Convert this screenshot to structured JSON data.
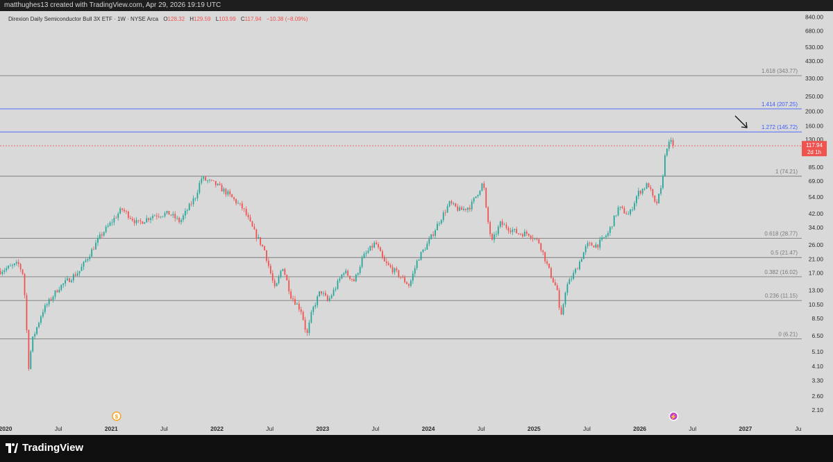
{
  "header": {
    "created_text": "matthughes13 created with TradingView.com, Apr 29, 2026 19:19 UTC"
  },
  "legend": {
    "symbol": "Direxion Daily Semiconductor Bull 3X ETF · 1W · NYSE Arca",
    "o_label": "O",
    "o_value": "128.32",
    "h_label": "H",
    "h_value": "129.59",
    "l_label": "L",
    "l_value": "103.99",
    "c_label": "C",
    "c_value": "117.94",
    "change": "−10.38 (−8.09%)"
  },
  "price_tag": {
    "price": "117.94",
    "countdown": "2d 1h"
  },
  "brand": {
    "name": "TradingView"
  },
  "colors": {
    "up": "#26a69a",
    "down": "#ef5350",
    "fib_gray": "#7a7a7a",
    "fib_blue": "#3d5afe",
    "background": "#d9d9d9"
  },
  "chart_data": {
    "type": "candlestick",
    "y_scale": "log",
    "ylim": [
      1.85,
      920
    ],
    "y_ticks": [
      "840.00",
      "680.00",
      "530.00",
      "430.00",
      "330.00",
      "250.00",
      "200.00",
      "160.00",
      "130.00",
      "85.00",
      "69.00",
      "54.00",
      "42.00",
      "34.00",
      "26.00",
      "21.00",
      "17.00",
      "13.00",
      "10.50",
      "8.50",
      "6.50",
      "5.10",
      "4.10",
      "3.30",
      "2.60",
      "2.10"
    ],
    "x_ticks": [
      {
        "label": "2020",
        "t": 2020.0,
        "bold": true
      },
      {
        "label": "Jul",
        "t": 2020.5,
        "bold": false
      },
      {
        "label": "2021",
        "t": 2021.0,
        "bold": true
      },
      {
        "label": "Jul",
        "t": 2021.5,
        "bold": false
      },
      {
        "label": "2022",
        "t": 2022.0,
        "bold": true
      },
      {
        "label": "Jul",
        "t": 2022.5,
        "bold": false
      },
      {
        "label": "2023",
        "t": 2023.0,
        "bold": true
      },
      {
        "label": "Jul",
        "t": 2023.5,
        "bold": false
      },
      {
        "label": "2024",
        "t": 2024.0,
        "bold": true
      },
      {
        "label": "Jul",
        "t": 2024.5,
        "bold": false
      },
      {
        "label": "2025",
        "t": 2025.0,
        "bold": true
      },
      {
        "label": "Jul",
        "t": 2025.5,
        "bold": false
      },
      {
        "label": "2026",
        "t": 2026.0,
        "bold": true
      },
      {
        "label": "Jul",
        "t": 2026.5,
        "bold": false
      },
      {
        "label": "2027",
        "t": 2027.0,
        "bold": true
      },
      {
        "label": "Ju",
        "t": 2027.5,
        "bold": false
      }
    ],
    "fib_levels": [
      {
        "label": "1.618 (343.77)",
        "value": 343.77,
        "color": "gray"
      },
      {
        "label": "1.414 (207.25)",
        "value": 207.25,
        "color": "blue"
      },
      {
        "label": "1.272 (145.72)",
        "value": 145.72,
        "color": "blue"
      },
      {
        "label": "1 (74.21)",
        "value": 74.21,
        "color": "gray"
      },
      {
        "label": "0.618 (28.77)",
        "value": 28.77,
        "color": "gray"
      },
      {
        "label": "0.5 (21.47)",
        "value": 21.47,
        "color": "gray"
      },
      {
        "label": "0.382 (16.02)",
        "value": 16.02,
        "color": "gray"
      },
      {
        "label": "0.236 (11.15)",
        "value": 11.15,
        "color": "gray"
      },
      {
        "label": "0 (6.21)",
        "value": 6.21,
        "color": "gray"
      }
    ],
    "last_price": 117.94,
    "price_path": [
      [
        2019.95,
        17.5
      ],
      [
        2020.12,
        19.5
      ],
      [
        2020.17,
        16.5
      ],
      [
        2020.22,
        4.0
      ],
      [
        2020.25,
        6.0
      ],
      [
        2020.35,
        9.5
      ],
      [
        2020.5,
        13.5
      ],
      [
        2020.7,
        17.5
      ],
      [
        2020.9,
        30
      ],
      [
        2021.1,
        45
      ],
      [
        2021.25,
        36
      ],
      [
        2021.4,
        41
      ],
      [
        2021.55,
        42
      ],
      [
        2021.65,
        37
      ],
      [
        2021.8,
        55
      ],
      [
        2021.85,
        72
      ],
      [
        2021.98,
        66
      ],
      [
        2022.1,
        57
      ],
      [
        2022.25,
        45
      ],
      [
        2022.35,
        32
      ],
      [
        2022.45,
        24
      ],
      [
        2022.55,
        13
      ],
      [
        2022.62,
        19
      ],
      [
        2022.7,
        12
      ],
      [
        2022.8,
        9.5
      ],
      [
        2022.85,
        6.5
      ],
      [
        2022.9,
        9.5
      ],
      [
        2022.98,
        13
      ],
      [
        2023.05,
        11
      ],
      [
        2023.12,
        13.5
      ],
      [
        2023.2,
        17.5
      ],
      [
        2023.3,
        15
      ],
      [
        2023.38,
        21.5
      ],
      [
        2023.5,
        27
      ],
      [
        2023.58,
        20
      ],
      [
        2023.7,
        17
      ],
      [
        2023.82,
        14
      ],
      [
        2023.9,
        21
      ],
      [
        2024.0,
        27
      ],
      [
        2024.1,
        37
      ],
      [
        2024.2,
        49
      ],
      [
        2024.3,
        44
      ],
      [
        2024.4,
        47
      ],
      [
        2024.48,
        60
      ],
      [
        2024.52,
        68
      ],
      [
        2024.55,
        42
      ],
      [
        2024.6,
        27
      ],
      [
        2024.68,
        36
      ],
      [
        2024.75,
        34
      ],
      [
        2024.85,
        31
      ],
      [
        2024.95,
        31
      ],
      [
        2025.05,
        27
      ],
      [
        2025.15,
        17
      ],
      [
        2025.22,
        13
      ],
      [
        2025.25,
        8
      ],
      [
        2025.3,
        13.5
      ],
      [
        2025.4,
        18
      ],
      [
        2025.5,
        26
      ],
      [
        2025.6,
        26
      ],
      [
        2025.7,
        31
      ],
      [
        2025.8,
        46
      ],
      [
        2025.9,
        41
      ],
      [
        2025.98,
        57
      ],
      [
        2026.08,
        66
      ],
      [
        2026.15,
        47
      ],
      [
        2026.2,
        60
      ],
      [
        2026.25,
        116
      ],
      [
        2026.3,
        125
      ],
      [
        2026.32,
        117.94
      ]
    ],
    "markers": [
      {
        "symbol": "$",
        "t": 2021.05,
        "type": "dividend"
      },
      {
        "symbol": "⚡",
        "t": 2026.32,
        "type": "split"
      }
    ]
  }
}
